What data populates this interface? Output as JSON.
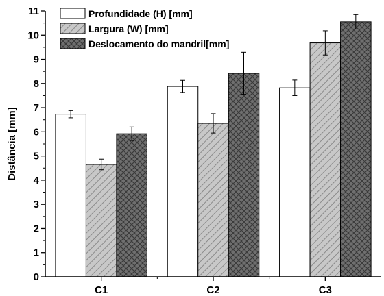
{
  "chart_data": {
    "type": "bar",
    "xlabel": "",
    "ylabel": "Distância [mm]",
    "ylim": [
      0,
      11
    ],
    "yticks": [
      "0",
      "1",
      "2",
      "3",
      "4",
      "5",
      "6",
      "7",
      "8",
      "9",
      "10",
      "11"
    ],
    "categories": [
      "C1",
      "C2",
      "C3"
    ],
    "legend_position": "top-left",
    "grid": false,
    "series": [
      {
        "name": "Profundidade (H) [mm]",
        "pattern": "solid-white",
        "values": [
          6.73,
          7.88,
          7.82
        ],
        "errors": [
          0.15,
          0.25,
          0.32
        ]
      },
      {
        "name": "Largura (W) [mm]",
        "pattern": "diagonal-hatch",
        "values": [
          4.65,
          6.35,
          9.68
        ],
        "errors": [
          0.22,
          0.4,
          0.5
        ]
      },
      {
        "name": "Deslocamento do mandril[mm]",
        "pattern": "cross-hatch-dark",
        "values": [
          5.92,
          8.42,
          10.55
        ],
        "errors": [
          0.28,
          0.87,
          0.3
        ]
      }
    ]
  }
}
